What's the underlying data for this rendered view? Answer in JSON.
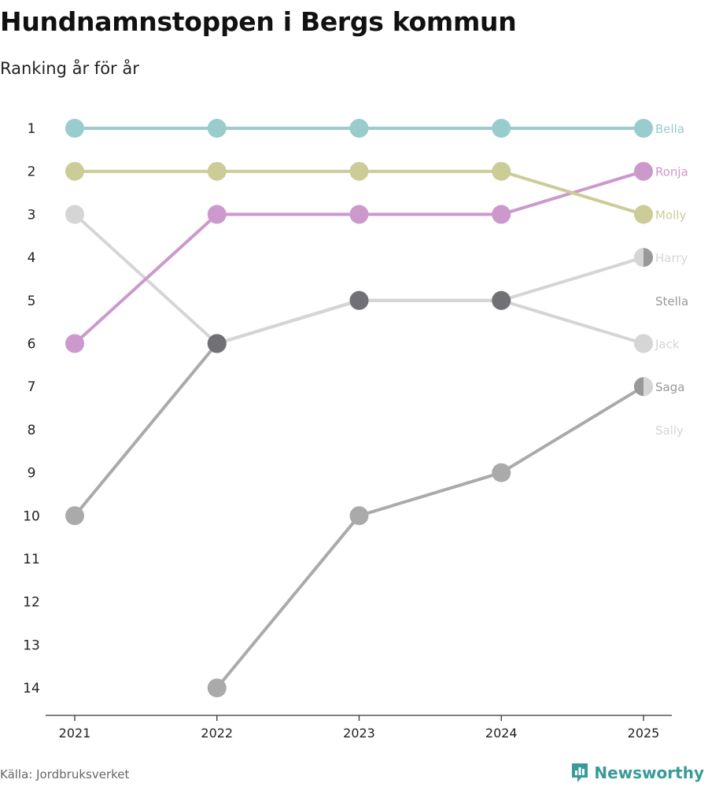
{
  "title": "Hundnamnstoppen i Bergs kommun",
  "subtitle": "Ranking år för år",
  "source": "Källa: Jordbruksverket",
  "brand": "Newsworthy",
  "colors": {
    "axis": "#333333",
    "brand": "#3a9a9a"
  },
  "chart_data": {
    "type": "line",
    "title": "Hundnamnstoppen i Bergs kommun",
    "subtitle": "Ranking år för år",
    "x": [
      "2021",
      "2022",
      "2023",
      "2024",
      "2025"
    ],
    "ylabel": "",
    "ylim": [
      1,
      14
    ],
    "y_reversed": true,
    "y_ticks": [
      "1",
      "2",
      "3",
      "4",
      "5",
      "6",
      "7",
      "8",
      "9",
      "10",
      "11",
      "12",
      "13",
      "14"
    ],
    "series": [
      {
        "name": "Bella",
        "values": [
          1,
          1,
          1,
          1,
          1
        ],
        "color": "#99cccc",
        "dot": "#99cccc"
      },
      {
        "name": "Molly",
        "values": [
          2,
          2,
          2,
          2,
          3
        ],
        "color": "#cccc99",
        "dot": "#cccc99"
      },
      {
        "name": "Ronja",
        "values": [
          6,
          3,
          3,
          3,
          2
        ],
        "color": "#cc99cc",
        "dot": "#cc99cc"
      },
      {
        "name": "Jack",
        "values": [
          3,
          6,
          5,
          5,
          6
        ],
        "color": "#d5d5d5",
        "dot": "#d5d5d5"
      },
      {
        "name": "Harry",
        "values": [
          null,
          6,
          5,
          5,
          4
        ],
        "color": "#d5d5d5",
        "dot": "#d5d5d5"
      },
      {
        "name": "Stella",
        "values": [
          10,
          6,
          5,
          5,
          null
        ],
        "color": "#aaaaaa",
        "dot": "#aaaaaa"
      },
      {
        "name": "Saga",
        "values": [
          null,
          14,
          10,
          9,
          7
        ],
        "color": "#aaaaaa",
        "dot": "#aaaaaa"
      },
      {
        "name": "Sally",
        "values": [
          null,
          null,
          null,
          null,
          null
        ],
        "color": "#d5d5d5",
        "dot": "#d5d5d5"
      }
    ],
    "end_labels": [
      {
        "name": "Bella",
        "rank": 1,
        "color": "#99cccc"
      },
      {
        "name": "Ronja",
        "rank": 2,
        "color": "#cc99cc"
      },
      {
        "name": "Molly",
        "rank": 3,
        "color": "#cccc99"
      },
      {
        "name": "Harry",
        "rank": 4,
        "color": "#d5d5d5"
      },
      {
        "name": "Stella",
        "rank": 5,
        "color": "#999999"
      },
      {
        "name": "Jack",
        "rank": 6,
        "color": "#d5d5d5"
      },
      {
        "name": "Saga",
        "rank": 7,
        "color": "#999999"
      },
      {
        "name": "Sally",
        "rank": 8,
        "color": "#d5d5d5"
      }
    ],
    "shared_points": [
      {
        "x": "2022",
        "rank": 6,
        "color": "#707075"
      },
      {
        "x": "2023",
        "rank": 5,
        "color": "#707075"
      },
      {
        "x": "2024",
        "rank": 5,
        "color": "#707075"
      }
    ],
    "split_points": [
      {
        "x": "2025",
        "rank": 4,
        "left": "#d5d5d5",
        "right": "#999999"
      },
      {
        "x": "2025",
        "rank": 7,
        "left": "#999999",
        "right": "#d5d5d5"
      }
    ]
  }
}
